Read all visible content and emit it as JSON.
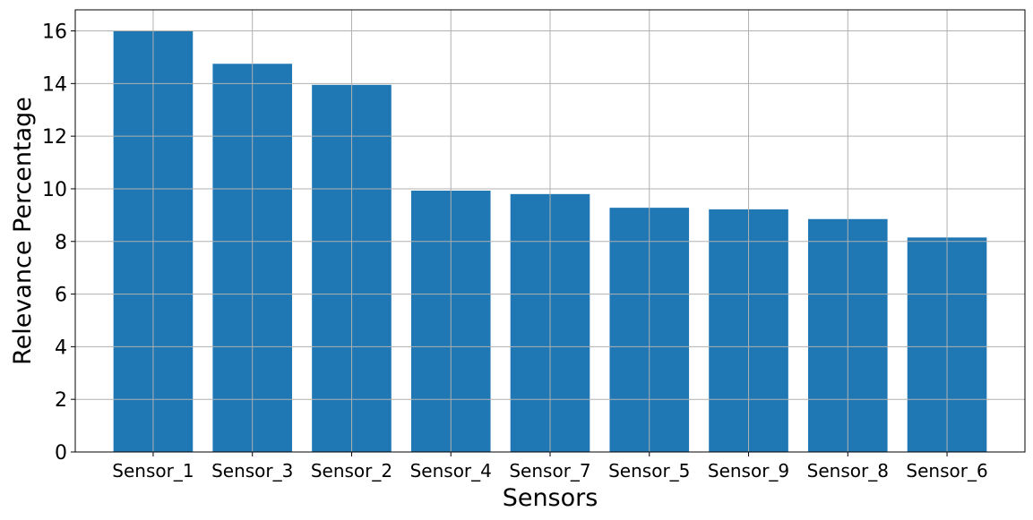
{
  "chart_data": {
    "type": "bar",
    "title": "",
    "xlabel": "Sensors",
    "ylabel": "Relevance Percentage",
    "categories": [
      "Sensor_1",
      "Sensor_3",
      "Sensor_2",
      "Sensor_4",
      "Sensor_7",
      "Sensor_5",
      "Sensor_9",
      "Sensor_8",
      "Sensor_6"
    ],
    "values": [
      16.0,
      14.75,
      13.95,
      9.93,
      9.8,
      9.28,
      9.22,
      8.85,
      8.15
    ],
    "ylim": [
      0,
      16.8
    ],
    "yticks": [
      0,
      2,
      4,
      6,
      8,
      10,
      12,
      14,
      16
    ],
    "grid": true,
    "legend": "none",
    "colors": {
      "bar": "#1f77b4",
      "grid": "#b0b0b0",
      "axis": "#000000"
    }
  }
}
